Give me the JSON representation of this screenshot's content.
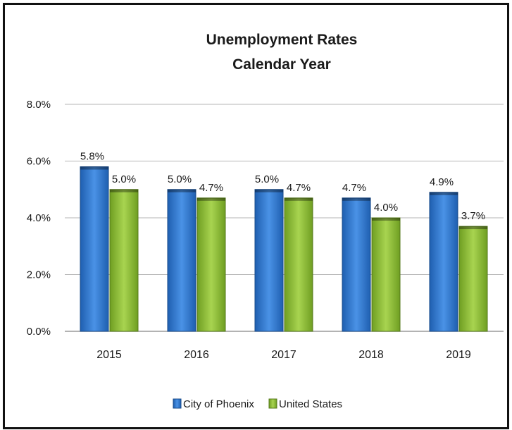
{
  "chart_data": {
    "type": "bar",
    "title": [
      "Unemployment Rates",
      "Calendar Year"
    ],
    "categories": [
      "2015",
      "2016",
      "2017",
      "2018",
      "2019"
    ],
    "series": [
      {
        "name": "City of Phoenix",
        "values": [
          5.8,
          5.0,
          5.0,
          4.7,
          4.9
        ],
        "labels": [
          "5.8%",
          "5.0%",
          "5.0%",
          "4.7%",
          "4.9%"
        ],
        "color": "#2f7ad6"
      },
      {
        "name": "United States",
        "values": [
          5.0,
          4.7,
          4.7,
          4.0,
          3.7
        ],
        "labels": [
          "5.0%",
          "4.7%",
          "4.7%",
          "4.0%",
          "3.7%"
        ],
        "color": "#8fc13a"
      }
    ],
    "ylim": [
      0,
      8
    ],
    "yticks": [
      0,
      2,
      4,
      6,
      8
    ],
    "ytick_labels": [
      "0.0%",
      "2.0%",
      "4.0%",
      "6.0%",
      "8.0%"
    ],
    "grid": true,
    "legend_position": "bottom"
  }
}
